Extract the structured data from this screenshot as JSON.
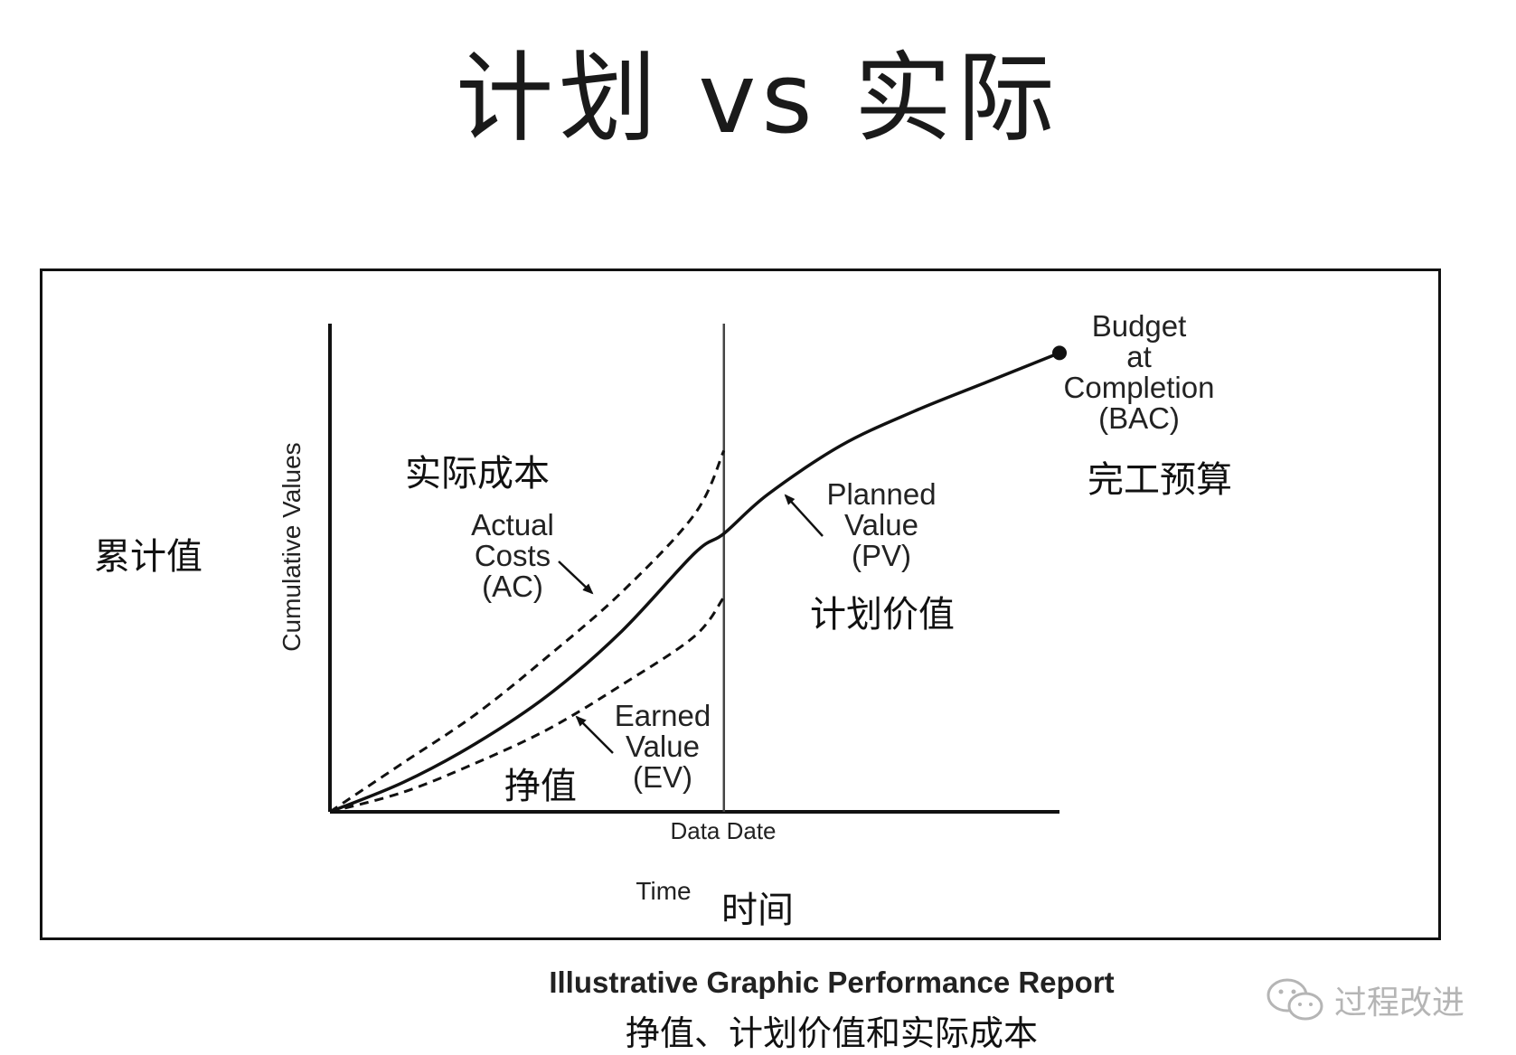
{
  "page": {
    "title": "计划 vs 实际",
    "caption_en": "Illustrative Graphic Performance Report",
    "caption_cn": "挣值、计划价值和实际成本",
    "watermark": "过程改进",
    "watermark_icon": "wechat-icon"
  },
  "labels": {
    "cumulative_cn": "累计值",
    "actual_cost_cn": "实际成本",
    "earned_value_cn": "挣值",
    "planned_value_cn": "计划价值",
    "bac_cn": "完工预算",
    "time_cn": "时间",
    "pv_line1": "Planned",
    "pv_line2": "Value",
    "pv_line3": "(PV)",
    "ac_line1": "Actual",
    "ac_line2": "Costs",
    "ac_line3": "(AC)",
    "ev_line1": "Earned",
    "ev_line2": "Value",
    "ev_line3": "(EV)",
    "bac_line1": "Budget",
    "bac_line2": "at",
    "bac_line3": "Completion",
    "bac_line4": "(BAC)"
  },
  "chart_data": {
    "type": "line",
    "xlabel": "Time",
    "ylabel": "Cumulative Values",
    "data_date_label": "Data Date",
    "xlim": [
      0,
      100
    ],
    "ylim": [
      0,
      100
    ],
    "data_date_x": 54,
    "grid": false,
    "series": [
      {
        "name": "Planned Value (PV)",
        "style": "solid",
        "x": [
          0,
          10,
          20,
          30,
          40,
          50,
          54,
          60,
          70,
          80,
          90,
          100
        ],
        "y": [
          0,
          6,
          14,
          24,
          37,
          53,
          57,
          65,
          75,
          82,
          88,
          94
        ]
      },
      {
        "name": "Actual Costs (AC)",
        "style": "dashed",
        "x": [
          0,
          10,
          20,
          30,
          40,
          50,
          54
        ],
        "y": [
          0,
          10,
          20,
          32,
          45,
          61,
          74
        ]
      },
      {
        "name": "Earned Value (EV)",
        "style": "dashed",
        "x": [
          0,
          10,
          20,
          30,
          40,
          50,
          54
        ],
        "y": [
          0,
          4,
          10,
          17,
          26,
          36,
          44
        ]
      }
    ],
    "bac_point": {
      "label": "BAC",
      "x": 100,
      "y": 94
    }
  }
}
